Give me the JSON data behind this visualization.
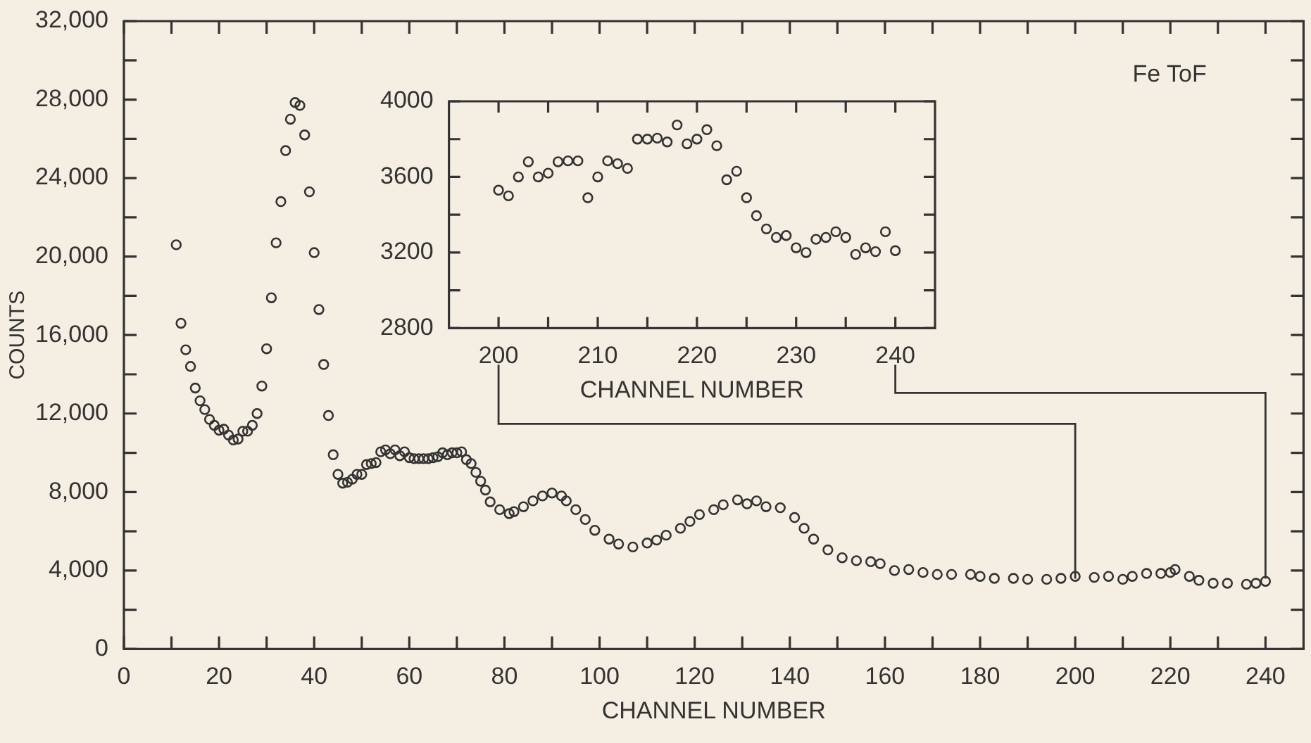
{
  "chart_data": [
    {
      "type": "scatter",
      "xlabel": "CHANNEL NUMBER",
      "ylabel": "COUNTS",
      "annotations": [
        "Fe ToF"
      ],
      "color": "#333333",
      "marker": "circle",
      "grid": false,
      "xlim": [
        0,
        248
      ],
      "ylim": [
        0,
        32000
      ],
      "xticks": [
        0,
        {
          "value": 10,
          "label": null
        },
        20,
        {
          "value": 30,
          "label": null
        },
        40,
        {
          "value": 50,
          "label": null
        },
        60,
        {
          "value": 70,
          "label": null
        },
        80,
        {
          "value": 90,
          "label": null
        },
        100,
        {
          "value": 110,
          "label": null
        },
        120,
        {
          "value": 130,
          "label": null
        },
        140,
        {
          "value": 150,
          "label": null
        },
        160,
        {
          "value": 170,
          "label": null
        },
        180,
        {
          "value": 190,
          "label": null
        },
        200,
        {
          "value": 210,
          "label": null
        },
        220,
        {
          "value": 230,
          "label": null
        },
        240
      ],
      "yticks": [
        0,
        {
          "value": 2000,
          "label": null
        },
        {
          "value": 4000,
          "label": "4,000"
        },
        {
          "value": 6000,
          "label": null
        },
        {
          "value": 8000,
          "label": "8,000"
        },
        {
          "value": 10000,
          "label": null
        },
        {
          "value": 12000,
          "label": "12,000"
        },
        {
          "value": 14000,
          "label": null
        },
        {
          "value": 16000,
          "label": "16,000"
        },
        {
          "value": 18000,
          "label": null
        },
        {
          "value": 20000,
          "label": "20,000"
        },
        {
          "value": 22000,
          "label": null
        },
        {
          "value": 24000,
          "label": "24,000"
        },
        {
          "value": 26000,
          "label": null
        },
        {
          "value": 28000,
          "label": "28,000"
        },
        {
          "value": 30000,
          "label": null
        },
        {
          "value": 32000,
          "label": "32,000"
        }
      ],
      "x": [
        11,
        12,
        13,
        14,
        15,
        16,
        17,
        18,
        19,
        20,
        21,
        22,
        23,
        24,
        25,
        26,
        27,
        28,
        29,
        30,
        31,
        32,
        33,
        34,
        35,
        36,
        37,
        38,
        39,
        40,
        41,
        42,
        43,
        44,
        45,
        46,
        47,
        48,
        49,
        50,
        51,
        52,
        53,
        54,
        55,
        56,
        57,
        58,
        59,
        60,
        61,
        62,
        63,
        64,
        65,
        66,
        67,
        68,
        69,
        70,
        71,
        72,
        73,
        74,
        75,
        76,
        77,
        79,
        81,
        82,
        84,
        86,
        88,
        90,
        92,
        93,
        95,
        97,
        99,
        102,
        104,
        107,
        110,
        112,
        114,
        117,
        119,
        121,
        124,
        126,
        129,
        131,
        133,
        135,
        138,
        141,
        143,
        145,
        148,
        151,
        154,
        157,
        159,
        162,
        165,
        168,
        171,
        174,
        178,
        180,
        183,
        187,
        190,
        194,
        197,
        200,
        204,
        207,
        210,
        212,
        215,
        218,
        220,
        221,
        224,
        226,
        229,
        232,
        236,
        238,
        240
      ],
      "values": [
        20600,
        16600,
        15250,
        14400,
        13300,
        12650,
        12200,
        11700,
        11400,
        11150,
        11200,
        10900,
        10650,
        10700,
        11100,
        11100,
        11400,
        12000,
        13400,
        15300,
        17900,
        20700,
        22800,
        25400,
        27000,
        27850,
        27700,
        26200,
        23300,
        20200,
        17300,
        14500,
        11900,
        9900,
        8900,
        8450,
        8500,
        8650,
        8900,
        8900,
        9400,
        9450,
        9500,
        10050,
        10150,
        9950,
        10150,
        9850,
        10050,
        9750,
        9700,
        9700,
        9700,
        9700,
        9750,
        9800,
        10000,
        9900,
        10000,
        10000,
        10050,
        9650,
        9450,
        9000,
        8550,
        8100,
        7500,
        7100,
        6900,
        7000,
        7250,
        7550,
        7800,
        7950,
        7800,
        7550,
        7100,
        6600,
        6050,
        5600,
        5350,
        5200,
        5400,
        5550,
        5800,
        6150,
        6500,
        6850,
        7100,
        7350,
        7600,
        7400,
        7550,
        7250,
        7200,
        6700,
        6150,
        5600,
        5050,
        4650,
        4500,
        4450,
        4350,
        4000,
        4050,
        3900,
        3800,
        3800,
        3800,
        3700,
        3600,
        3600,
        3550,
        3550,
        3600,
        3700,
        3650,
        3700,
        3550,
        3700,
        3850,
        3850,
        3900,
        4050,
        3700,
        3500,
        3350,
        3350,
        3300,
        3350,
        3450
      ]
    },
    {
      "type": "scatter",
      "xlabel": "CHANNEL NUMBER",
      "color": "#333333",
      "marker": "circle",
      "grid": false,
      "xlim": [
        195,
        244
      ],
      "ylim": [
        2800,
        4000
      ],
      "xticks": [
        200,
        {
          "value": 205,
          "label": null
        },
        210,
        {
          "value": 215,
          "label": null
        },
        220,
        {
          "value": 225,
          "label": null
        },
        230,
        {
          "value": 235,
          "label": null
        },
        240
      ],
      "yticks": [
        2800,
        {
          "value": 3000,
          "label": null
        },
        3200,
        {
          "value": 3400,
          "label": null
        },
        3600,
        {
          "value": 3800,
          "label": null
        },
        4000
      ],
      "x": [
        200,
        201,
        202,
        203,
        204,
        205,
        206,
        207,
        208,
        209,
        210,
        211,
        212,
        213,
        214,
        215,
        216,
        217,
        218,
        219,
        220,
        221,
        222,
        223,
        224,
        225,
        226,
        227,
        228,
        229,
        230,
        231,
        232,
        233,
        234,
        235,
        236,
        237,
        238,
        239,
        240
      ],
      "values": [
        3530,
        3500,
        3600,
        3680,
        3600,
        3620,
        3680,
        3685,
        3685,
        3490,
        3600,
        3685,
        3670,
        3645,
        3800,
        3800,
        3805,
        3785,
        3875,
        3775,
        3800,
        3850,
        3765,
        3585,
        3630,
        3490,
        3395,
        3325,
        3280,
        3290,
        3225,
        3200,
        3270,
        3280,
        3310,
        3280,
        3190,
        3225,
        3205,
        3310,
        3210
      ]
    }
  ]
}
